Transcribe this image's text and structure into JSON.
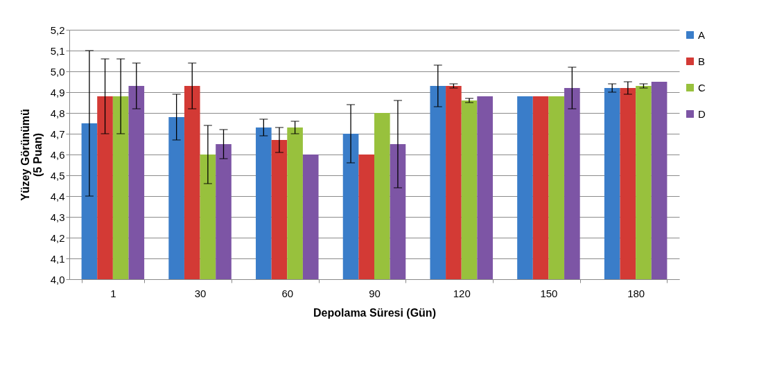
{
  "chart_data": {
    "type": "bar",
    "xlabel": "Depolama Süresi (Gün)",
    "ylabel": "Yüzey Görünümü\n(5 Puan)",
    "categories": [
      "1",
      "30",
      "60",
      "90",
      "120",
      "150",
      "180"
    ],
    "series": [
      {
        "name": "A",
        "color": "#3a7dc9",
        "values": [
          4.75,
          4.78,
          4.73,
          4.7,
          4.93,
          4.88,
          4.92
        ],
        "errors": [
          0.35,
          0.11,
          0.04,
          0.14,
          0.1,
          null,
          0.02
        ]
      },
      {
        "name": "B",
        "color": "#d33a35",
        "values": [
          4.88,
          4.93,
          4.67,
          4.6,
          4.93,
          4.88,
          4.92
        ],
        "errors": [
          0.18,
          0.11,
          0.06,
          null,
          0.01,
          null,
          0.03
        ]
      },
      {
        "name": "C",
        "color": "#98c13d",
        "values": [
          4.88,
          4.6,
          4.73,
          4.8,
          4.86,
          4.88,
          4.93
        ],
        "errors": [
          0.18,
          0.14,
          0.03,
          null,
          0.01,
          null,
          0.01
        ]
      },
      {
        "name": "D",
        "color": "#7d55a5",
        "values": [
          4.93,
          4.65,
          4.6,
          4.65,
          4.88,
          4.92,
          4.95
        ],
        "errors": [
          0.11,
          0.07,
          null,
          0.21,
          null,
          0.1,
          null
        ]
      }
    ],
    "ylim": [
      4.0,
      5.2
    ],
    "yticks": [
      {
        "value": 4.0,
        "label": "4,0"
      },
      {
        "value": 4.1,
        "label": "4,1"
      },
      {
        "value": 4.2,
        "label": "4,2"
      },
      {
        "value": 4.3,
        "label": "4,3"
      },
      {
        "value": 4.4,
        "label": "4,4"
      },
      {
        "value": 4.5,
        "label": "4,5"
      },
      {
        "value": 4.6,
        "label": "4,6"
      },
      {
        "value": 4.7,
        "label": "4,7"
      },
      {
        "value": 4.8,
        "label": "4,8"
      },
      {
        "value": 4.9,
        "label": "4,9"
      },
      {
        "value": 5.0,
        "label": "5,0"
      },
      {
        "value": 5.1,
        "label": "5,1"
      },
      {
        "value": 5.2,
        "label": "5,2"
      }
    ],
    "grid": "y",
    "legend": "right"
  }
}
